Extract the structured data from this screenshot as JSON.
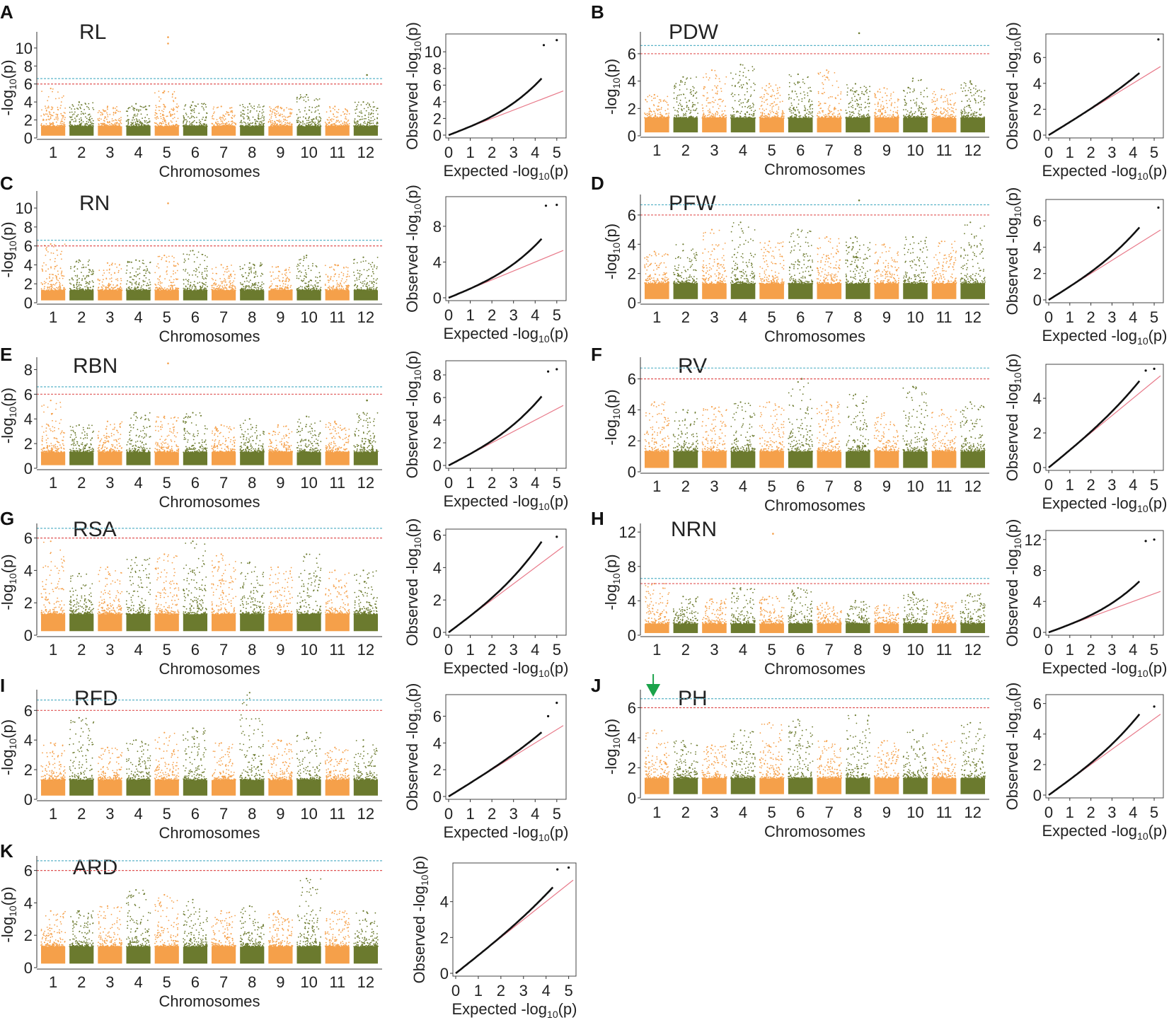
{
  "figure": {
    "chromosome_axis_label": "Chromosomes",
    "manhattan_ylabel": "-log10(p)",
    "qq_xlabel": "Expected -log10(p)",
    "qq_ylabel": "Observed -log10(p)",
    "colors": {
      "odd": "#f5a04a",
      "even": "#6b7a2e",
      "threshold_blue": "#5ab4c8",
      "threshold_red": "#e05555",
      "qq_line": "#e87a8a",
      "arrow": "#1aa34a"
    }
  },
  "chart_data": [
    {
      "type": "scatter",
      "panel": "A",
      "title": "RL",
      "chromosomes": [
        "1",
        "2",
        "3",
        "4",
        "5",
        "6",
        "7",
        "8",
        "9",
        "10",
        "11",
        "12"
      ],
      "peaks": [
        5.5,
        4.0,
        3.5,
        3.8,
        5.2,
        4.0,
        3.5,
        3.8,
        3.5,
        4.8,
        3.5,
        4.0
      ],
      "outliers": [
        {
          "chr": 5,
          "y": 11.2
        },
        {
          "chr": 5,
          "y": 10.5
        },
        {
          "chr": 12,
          "y": 7.0
        }
      ],
      "ylim": [
        0,
        11.8
      ],
      "yticks": [
        0,
        2,
        4,
        6,
        8,
        10
      ],
      "thresholds": [
        6.6,
        6.0
      ],
      "qq": {
        "xlim": [
          0,
          5.3
        ],
        "xticks": [
          0,
          1,
          2,
          3,
          4,
          5
        ],
        "ylim": [
          0,
          11.8
        ],
        "yticks": [
          0,
          2,
          4,
          6,
          8,
          10
        ],
        "max_obs": 6.8,
        "points": [
          [
            4.4,
            10.8
          ],
          [
            5.0,
            11.4
          ]
        ]
      }
    },
    {
      "type": "scatter",
      "panel": "B",
      "title": "PDW",
      "chromosomes": [
        "1",
        "2",
        "3",
        "4",
        "5",
        "6",
        "7",
        "8",
        "9",
        "10",
        "11",
        "12"
      ],
      "peaks": [
        3.0,
        4.3,
        4.8,
        5.2,
        3.8,
        4.5,
        4.8,
        3.8,
        3.5,
        4.2,
        3.4,
        4.0
      ],
      "outliers": [
        {
          "chr": 8,
          "y": 7.5
        }
      ],
      "ylim": [
        0,
        7.6
      ],
      "yticks": [
        0,
        2,
        4,
        6
      ],
      "thresholds": [
        6.6,
        6.0
      ],
      "qq": {
        "xlim": [
          0,
          5.3
        ],
        "xticks": [
          0,
          1,
          2,
          3,
          4,
          5
        ],
        "ylim": [
          0,
          7.6
        ],
        "yticks": [
          0,
          2,
          4,
          6
        ],
        "max_obs": 4.8,
        "points": [
          [
            5.2,
            7.4
          ]
        ]
      }
    },
    {
      "type": "scatter",
      "panel": "C",
      "title": "RN",
      "chromosomes": [
        "1",
        "2",
        "3",
        "4",
        "5",
        "6",
        "7",
        "8",
        "9",
        "10",
        "11",
        "12"
      ],
      "peaks": [
        6.2,
        4.5,
        4.2,
        4.5,
        5.0,
        5.5,
        4.0,
        4.2,
        3.8,
        5.0,
        4.0,
        4.8
      ],
      "outliers": [
        {
          "chr": 5,
          "y": 10.5
        }
      ],
      "ylim": [
        0,
        11.8
      ],
      "yticks": [
        0,
        2,
        4,
        6,
        8,
        10
      ],
      "thresholds": [
        6.6,
        6.0
      ],
      "qq": {
        "xlim": [
          0,
          5.3
        ],
        "xticks": [
          0,
          1,
          2,
          3,
          4,
          5
        ],
        "ylim": [
          0,
          11.0
        ],
        "yticks": [
          0,
          4,
          8
        ],
        "max_obs": 6.6,
        "points": [
          [
            4.5,
            10.3
          ],
          [
            5.0,
            10.4
          ]
        ]
      }
    },
    {
      "type": "scatter",
      "panel": "D",
      "title": "PFW",
      "chromosomes": [
        "1",
        "2",
        "3",
        "4",
        "5",
        "6",
        "7",
        "8",
        "9",
        "10",
        "11",
        "12"
      ],
      "peaks": [
        3.5,
        4.0,
        5.0,
        5.5,
        4.2,
        5.0,
        4.5,
        4.5,
        4.0,
        4.5,
        4.2,
        5.5
      ],
      "outliers": [
        {
          "chr": 8,
          "y": 7.0
        }
      ],
      "ylim": [
        0,
        7.4
      ],
      "yticks": [
        0,
        2,
        4,
        6
      ],
      "thresholds": [
        6.7,
        6.0
      ],
      "qq": {
        "xlim": [
          0,
          5.3
        ],
        "xticks": [
          0,
          1,
          2,
          3,
          4,
          5
        ],
        "ylim": [
          0,
          7.4
        ],
        "yticks": [
          0,
          2,
          4,
          6
        ],
        "max_obs": 5.5,
        "points": [
          [
            5.2,
            7.0
          ]
        ]
      }
    },
    {
      "type": "scatter",
      "panel": "E",
      "title": "RBN",
      "chromosomes": [
        "1",
        "2",
        "3",
        "4",
        "5",
        "6",
        "7",
        "8",
        "9",
        "10",
        "11",
        "12"
      ],
      "peaks": [
        5.5,
        3.5,
        3.8,
        4.5,
        4.2,
        4.5,
        3.5,
        4.0,
        3.5,
        4.2,
        3.8,
        4.5
      ],
      "outliers": [
        {
          "chr": 5,
          "y": 8.5
        },
        {
          "chr": 12,
          "y": 5.5
        }
      ],
      "ylim": [
        0,
        9.0
      ],
      "yticks": [
        0,
        2,
        4,
        6,
        8
      ],
      "thresholds": [
        6.6,
        6.0
      ],
      "qq": {
        "xlim": [
          0,
          5.3
        ],
        "xticks": [
          0,
          1,
          2,
          3,
          4,
          5
        ],
        "ylim": [
          0,
          9.0
        ],
        "yticks": [
          0,
          2,
          4,
          6,
          8
        ],
        "max_obs": 6.1,
        "points": [
          [
            4.6,
            8.3
          ],
          [
            5.0,
            8.5
          ]
        ]
      }
    },
    {
      "type": "scatter",
      "panel": "F",
      "title": "RV",
      "chromosomes": [
        "1",
        "2",
        "3",
        "4",
        "5",
        "6",
        "7",
        "8",
        "9",
        "10",
        "11",
        "12"
      ],
      "peaks": [
        4.5,
        4.0,
        4.2,
        4.5,
        4.5,
        5.8,
        4.5,
        5.0,
        3.8,
        5.5,
        4.0,
        4.5
      ],
      "outliers": [
        {
          "chr": 6,
          "y": 6.0
        }
      ],
      "ylim": [
        0,
        7.4
      ],
      "yticks": [
        0,
        2,
        4,
        6
      ],
      "thresholds": [
        6.7,
        6.0
      ],
      "qq": {
        "xlim": [
          0,
          5.3
        ],
        "xticks": [
          0,
          1,
          2,
          3,
          4,
          5
        ],
        "ylim": [
          0,
          5.8
        ],
        "yticks": [
          0,
          2,
          4
        ],
        "max_obs": 5.0,
        "points": [
          [
            4.6,
            5.6
          ],
          [
            5.0,
            5.7
          ]
        ]
      }
    },
    {
      "type": "scatter",
      "panel": "G",
      "title": "RSA",
      "chromosomes": [
        "1",
        "2",
        "3",
        "4",
        "5",
        "6",
        "7",
        "8",
        "9",
        "10",
        "11",
        "12"
      ],
      "peaks": [
        5.8,
        3.8,
        4.2,
        4.8,
        5.0,
        5.8,
        5.0,
        4.5,
        4.2,
        5.0,
        4.0,
        4.0
      ],
      "outliers": [],
      "ylim": [
        0,
        6.9
      ],
      "yticks": [
        0,
        2,
        4,
        6
      ],
      "thresholds": [
        6.6,
        6.0
      ],
      "qq": {
        "xlim": [
          0,
          5.3
        ],
        "xticks": [
          0,
          1,
          2,
          3,
          4,
          5
        ],
        "ylim": [
          0,
          6.2
        ],
        "yticks": [
          0,
          2,
          4,
          6
        ],
        "max_obs": 5.6,
        "points": [
          [
            5.0,
            5.9
          ]
        ]
      }
    },
    {
      "type": "scatter",
      "panel": "H",
      "title": "NRN",
      "chromosomes": [
        "1",
        "2",
        "3",
        "4",
        "5",
        "6",
        "7",
        "8",
        "9",
        "10",
        "11",
        "12"
      ],
      "peaks": [
        6.0,
        4.5,
        4.2,
        5.5,
        4.5,
        5.5,
        3.8,
        4.0,
        3.5,
        5.0,
        3.8,
        4.8
      ],
      "outliers": [
        {
          "chr": 5,
          "y": 11.8
        }
      ],
      "ylim": [
        0,
        13.0
      ],
      "yticks": [
        0,
        4,
        8,
        12
      ],
      "thresholds": [
        6.6,
        6.0
      ],
      "qq": {
        "xlim": [
          0,
          5.3
        ],
        "xticks": [
          0,
          1,
          2,
          3,
          4,
          5
        ],
        "ylim": [
          0,
          12.8
        ],
        "yticks": [
          0,
          4,
          8,
          12
        ],
        "max_obs": 6.6,
        "points": [
          [
            4.6,
            11.8
          ],
          [
            5.0,
            12.0
          ]
        ]
      }
    },
    {
      "type": "scatter",
      "panel": "I",
      "title": "RFD",
      "chromosomes": [
        "1",
        "2",
        "3",
        "4",
        "5",
        "6",
        "7",
        "8",
        "9",
        "10",
        "11",
        "12"
      ],
      "peaks": [
        3.8,
        5.5,
        3.5,
        4.0,
        4.5,
        4.8,
        3.8,
        7.2,
        4.0,
        4.5,
        3.5,
        4.0
      ],
      "outliers": [],
      "ylim": [
        0,
        7.4
      ],
      "yticks": [
        0,
        2,
        4,
        6
      ],
      "thresholds": [
        6.7,
        6.0
      ],
      "qq": {
        "xlim": [
          0,
          5.3
        ],
        "xticks": [
          0,
          1,
          2,
          3,
          4,
          5
        ],
        "ylim": [
          0,
          7.4
        ],
        "yticks": [
          0,
          2,
          4,
          6
        ],
        "max_obs": 4.8,
        "points": [
          [
            4.6,
            6.0
          ],
          [
            5.0,
            7.0
          ]
        ]
      }
    },
    {
      "type": "scatter",
      "panel": "J",
      "title": "PH",
      "chromosomes": [
        "1",
        "2",
        "3",
        "4",
        "5",
        "6",
        "7",
        "8",
        "9",
        "10",
        "11",
        "12"
      ],
      "peaks": [
        4.5,
        3.8,
        3.5,
        4.5,
        5.0,
        5.2,
        3.8,
        5.5,
        3.8,
        4.5,
        3.8,
        5.0
      ],
      "outliers": [],
      "ylim": [
        0,
        7.2
      ],
      "yticks": [
        0,
        2,
        4,
        6
      ],
      "thresholds": [
        6.6,
        6.0
      ],
      "qq": {
        "xlim": [
          0,
          5.3
        ],
        "xticks": [
          0,
          1,
          2,
          3,
          4,
          5
        ],
        "ylim": [
          0,
          6.4
        ],
        "yticks": [
          0,
          2,
          4,
          6
        ],
        "max_obs": 5.3,
        "points": [
          [
            5.0,
            5.8
          ]
        ]
      },
      "annotation": "arrow over chromosome 1"
    },
    {
      "type": "scatter",
      "panel": "K",
      "title": "ARD",
      "chromosomes": [
        "1",
        "2",
        "3",
        "4",
        "5",
        "6",
        "7",
        "8",
        "9",
        "10",
        "11",
        "12"
      ],
      "peaks": [
        3.5,
        3.5,
        3.8,
        4.8,
        4.5,
        4.2,
        3.5,
        3.8,
        3.5,
        5.5,
        3.5,
        3.5
      ],
      "outliers": [],
      "ylim": [
        0,
        6.9
      ],
      "yticks": [
        0,
        2,
        4,
        6
      ],
      "thresholds": [
        6.6,
        6.0
      ],
      "qq": {
        "xlim": [
          0,
          5.2
        ],
        "xticks": [
          0,
          1,
          2,
          3,
          4,
          5
        ],
        "ylim": [
          0,
          6.0
        ],
        "yticks": [
          0,
          2,
          4
        ],
        "max_obs": 4.8,
        "points": [
          [
            4.5,
            5.8
          ],
          [
            5.0,
            5.9
          ]
        ]
      }
    }
  ]
}
